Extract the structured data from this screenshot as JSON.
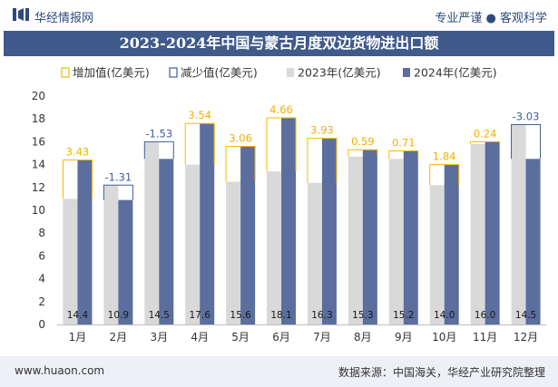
{
  "header": {
    "brand": "华经情报网",
    "tagline": "专业严谨 ● 客观科学",
    "title": "2023-2024年中国与蒙古月度双边货物进出口额"
  },
  "footer": {
    "website": "www.huaon.com",
    "source": "数据来源：中国海关，华经产业研究院整理"
  },
  "colors": {
    "bar2023": "#d9d9d9",
    "bar2024": "#5b6e9e",
    "increase": "#f5b800",
    "decrease": "#3f5f9a",
    "title_bg": "#415a8c"
  },
  "chart_data": {
    "type": "bar",
    "categories": [
      "1月",
      "2月",
      "3月",
      "4月",
      "5月",
      "6月",
      "7月",
      "8月",
      "9月",
      "10月",
      "11月",
      "12月"
    ],
    "series": [
      {
        "name": "2023年(亿美元)",
        "values": [
          11.0,
          12.2,
          16.0,
          14.0,
          12.5,
          13.4,
          12.4,
          14.7,
          14.5,
          12.2,
          15.8,
          17.5
        ]
      },
      {
        "name": "2024年(亿美元)",
        "values": [
          14.4,
          10.9,
          14.5,
          17.6,
          15.6,
          18.1,
          16.3,
          15.3,
          15.2,
          14.0,
          16.0,
          14.5
        ]
      }
    ],
    "change": [
      3.43,
      -1.31,
      -1.53,
      3.54,
      3.06,
      4.66,
      3.93,
      0.59,
      0.71,
      1.84,
      0.24,
      -3.03
    ],
    "change_labels": [
      "3.43",
      "-1.31",
      "-1.53",
      "3.54",
      "3.06",
      "4.66",
      "3.93",
      "0.59",
      "0.71",
      "1.84",
      "0.24",
      "-3.03"
    ],
    "value_labels_2024": [
      "14.4",
      "10.9",
      "14.5",
      "17.6",
      "15.6",
      "18.1",
      "16.3",
      "15.3",
      "15.2",
      "14.0",
      "16.0",
      "14.5"
    ],
    "legend": [
      "增加值(亿美元)",
      "减少值(亿美元)",
      "2023年(亿美元)",
      "2024年(亿美元)"
    ],
    "y_ticks": [
      "0",
      "2",
      "4",
      "6",
      "8",
      "10",
      "12",
      "14",
      "16",
      "18",
      "20"
    ],
    "ylim": [
      0,
      20
    ]
  }
}
